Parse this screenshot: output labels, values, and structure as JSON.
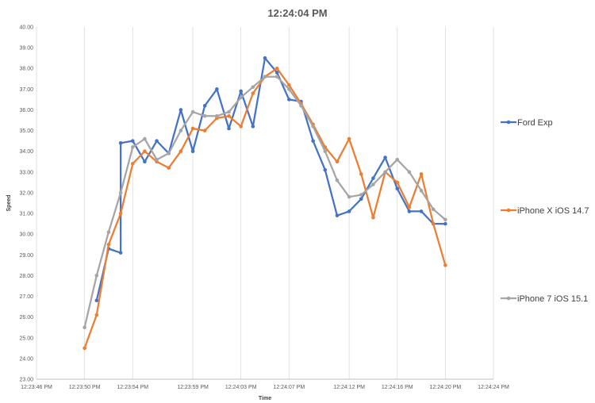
{
  "chart_data": {
    "type": "line",
    "title": "12:24:04 PM",
    "xlabel": "Time",
    "ylabel": "Speed",
    "ylim": [
      23,
      40
    ],
    "yticks": [
      "23.00",
      "24.00",
      "25.00",
      "26.00",
      "27.00",
      "28.00",
      "29.00",
      "30.00",
      "31.00",
      "32.00",
      "33.00",
      "34.00",
      "35.00",
      "36.00",
      "37.00",
      "38.00",
      "39.00",
      "40.00"
    ],
    "xlim": [
      "12:23:46",
      "12:24:24"
    ],
    "xticks": [
      {
        "t": "12:23:46",
        "label": "12:23:46 PM"
      },
      {
        "t": "12:23:50",
        "label": "12:23:50 PM"
      },
      {
        "t": "12:23:54",
        "label": "12:23:54 PM"
      },
      {
        "t": "12:23:59",
        "label": "12:23:59 PM"
      },
      {
        "t": "12:24:03",
        "label": "12:24:03 PM"
      },
      {
        "t": "12:24:07",
        "label": "12:24:07 PM"
      },
      {
        "t": "12:24:12",
        "label": "12:24:12 PM"
      },
      {
        "t": "12:24:16",
        "label": "12:24:16 PM"
      },
      {
        "t": "12:24:20",
        "label": "12:24:20 PM"
      },
      {
        "t": "12:24:24",
        "label": "12:24:24 PM"
      }
    ],
    "grid": "vertical",
    "legend_position": "right",
    "series": [
      {
        "name": "Ford Exp",
        "color": "#4472C4",
        "points": [
          [
            "12:23:51",
            26.8
          ],
          [
            "12:23:52",
            29.3
          ],
          [
            "12:23:53",
            29.1
          ],
          [
            "12:23:53",
            34.4
          ],
          [
            "12:23:54",
            34.5
          ],
          [
            "12:23:55",
            33.5
          ],
          [
            "12:23:56",
            34.5
          ],
          [
            "12:23:57",
            33.9
          ],
          [
            "12:23:58",
            36.0
          ],
          [
            "12:23:59",
            34.0
          ],
          [
            "12:24:00",
            36.2
          ],
          [
            "12:24:01",
            37.0
          ],
          [
            "12:24:02",
            35.1
          ],
          [
            "12:24:03",
            36.9
          ],
          [
            "12:24:04",
            35.2
          ],
          [
            "12:24:05",
            38.5
          ],
          [
            "12:24:06",
            37.8
          ],
          [
            "12:24:07",
            36.5
          ],
          [
            "12:24:08",
            36.4
          ],
          [
            "12:24:09",
            34.5
          ],
          [
            "12:24:10",
            33.1
          ],
          [
            "12:24:11",
            30.9
          ],
          [
            "12:24:12",
            31.1
          ],
          [
            "12:24:13",
            31.7
          ],
          [
            "12:24:14",
            32.7
          ],
          [
            "12:24:15",
            33.7
          ],
          [
            "12:24:16",
            32.2
          ],
          [
            "12:24:17",
            31.1
          ],
          [
            "12:24:18",
            31.1
          ],
          [
            "12:24:19",
            30.5
          ],
          [
            "12:24:20",
            30.5
          ]
        ]
      },
      {
        "name": "iPhone X iOS 14.7",
        "color": "#ED7D31",
        "points": [
          [
            "12:23:50",
            24.5
          ],
          [
            "12:23:51",
            26.1
          ],
          [
            "12:23:52",
            29.5
          ],
          [
            "12:23:53",
            31.0
          ],
          [
            "12:23:54",
            33.4
          ],
          [
            "12:23:55",
            34.0
          ],
          [
            "12:23:56",
            33.5
          ],
          [
            "12:23:57",
            33.2
          ],
          [
            "12:23:58",
            34.0
          ],
          [
            "12:23:59",
            35.1
          ],
          [
            "12:24:00",
            35.0
          ],
          [
            "12:24:01",
            35.6
          ],
          [
            "12:24:02",
            35.7
          ],
          [
            "12:24:03",
            35.2
          ],
          [
            "12:24:04",
            36.8
          ],
          [
            "12:24:05",
            37.6
          ],
          [
            "12:24:06",
            38.0
          ],
          [
            "12:24:07",
            37.2
          ],
          [
            "12:24:08",
            36.3
          ],
          [
            "12:24:09",
            35.3
          ],
          [
            "12:24:10",
            34.2
          ],
          [
            "12:24:11",
            33.5
          ],
          [
            "12:24:12",
            34.6
          ],
          [
            "12:24:13",
            32.9
          ],
          [
            "12:24:14",
            30.8
          ],
          [
            "12:24:15",
            33.0
          ],
          [
            "12:24:16",
            32.5
          ],
          [
            "12:24:17",
            31.3
          ],
          [
            "12:24:18",
            32.9
          ],
          [
            "12:24:19",
            30.5
          ],
          [
            "12:24:20",
            28.5
          ]
        ]
      },
      {
        "name": "iPhone 7 iOS 15.1",
        "color": "#A5A5A5",
        "points": [
          [
            "12:23:50",
            25.5
          ],
          [
            "12:23:51",
            28.0
          ],
          [
            "12:23:52",
            30.1
          ],
          [
            "12:23:53",
            32.0
          ],
          [
            "12:23:54",
            34.2
          ],
          [
            "12:23:55",
            34.6
          ],
          [
            "12:23:56",
            33.6
          ],
          [
            "12:23:57",
            33.9
          ],
          [
            "12:23:58",
            35.0
          ],
          [
            "12:23:59",
            35.9
          ],
          [
            "12:24:00",
            35.7
          ],
          [
            "12:24:01",
            35.7
          ],
          [
            "12:24:02",
            35.9
          ],
          [
            "12:24:03",
            36.6
          ],
          [
            "12:24:04",
            37.1
          ],
          [
            "12:24:05",
            37.6
          ],
          [
            "12:24:06",
            37.6
          ],
          [
            "12:24:07",
            37.0
          ],
          [
            "12:24:08",
            36.2
          ],
          [
            "12:24:09",
            35.2
          ],
          [
            "12:24:10",
            34.0
          ],
          [
            "12:24:11",
            32.6
          ],
          [
            "12:24:12",
            31.8
          ],
          [
            "12:24:13",
            31.9
          ],
          [
            "12:24:14",
            32.4
          ],
          [
            "12:24:15",
            33.0
          ],
          [
            "12:24:16",
            33.6
          ],
          [
            "12:24:17",
            33.0
          ],
          [
            "12:24:18",
            32.1
          ],
          [
            "12:24:19",
            31.2
          ],
          [
            "12:24:20",
            30.7
          ]
        ]
      }
    ]
  }
}
